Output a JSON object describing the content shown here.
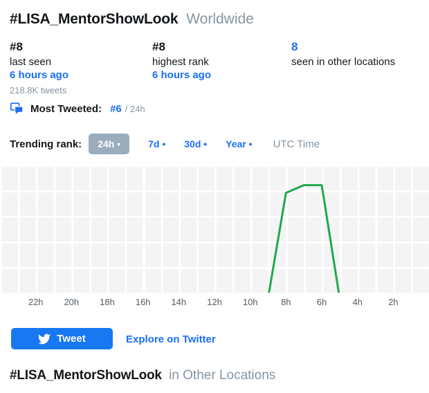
{
  "header": {
    "title": "#LISA_MentorShowLook",
    "scope": "Worldwide"
  },
  "stats": {
    "current": {
      "rank": "#8",
      "label": "last seen",
      "time": "6 hours ago",
      "tweets": "218.8K tweets"
    },
    "highest": {
      "rank": "#8",
      "label": "highest rank",
      "time": "6 hours ago"
    },
    "other_locations": {
      "count": "8",
      "label": "seen in other locations"
    }
  },
  "most_tweeted": {
    "icon": "chat-bubbles-icon",
    "label": "Most Tweeted:",
    "rank": "#6",
    "period": "/ 24h"
  },
  "trending_rank": {
    "label": "Trending rank:",
    "tabs": [
      {
        "label": "24h •",
        "selected": true
      },
      {
        "label": "7d •",
        "selected": false
      },
      {
        "label": "30d •",
        "selected": false
      },
      {
        "label": "Year •",
        "selected": false
      }
    ],
    "timezone_label": "UTC Time"
  },
  "chart_data": {
    "type": "line",
    "title": "Trending rank over the last 24 hours (24h view)",
    "x_unit": "hours ago, increasing toward now on the right",
    "x_range_hours_ago": [
      24,
      0
    ],
    "x_tick_labels": [
      "22h",
      "20h",
      "18h",
      "16h",
      "14h",
      "12h",
      "10h",
      "8h",
      "6h",
      "4h",
      "2h"
    ],
    "y_axis": "trend rank, inverted (rank 1 at top), no tick labels shown",
    "ylim": [
      1,
      50
    ],
    "grid": true,
    "legend": false,
    "line_color": "#1fa84d",
    "off_scale_rank": 52,
    "points": [
      {
        "hours_ago": 9,
        "rank": 52
      },
      {
        "hours_ago": 8,
        "rank": 11
      },
      {
        "hours_ago": 7,
        "rank": 8
      },
      {
        "hours_ago": 6,
        "rank": 8
      },
      {
        "hours_ago": 5,
        "rank": 52
      }
    ]
  },
  "actions": {
    "tweet_button": "Tweet",
    "explore_link": "Explore on Twitter"
  },
  "footer": {
    "title": "#LISA_MentorShowLook",
    "scope": "in Other Locations"
  },
  "colors": {
    "link_blue": "#1a6ff3",
    "button_blue": "#1778f2",
    "line_green": "#1fa84d",
    "selected_tab_bg": "#9bacbd",
    "chart_bg": "#f4f4f4",
    "muted_gray": "#8795a1"
  }
}
